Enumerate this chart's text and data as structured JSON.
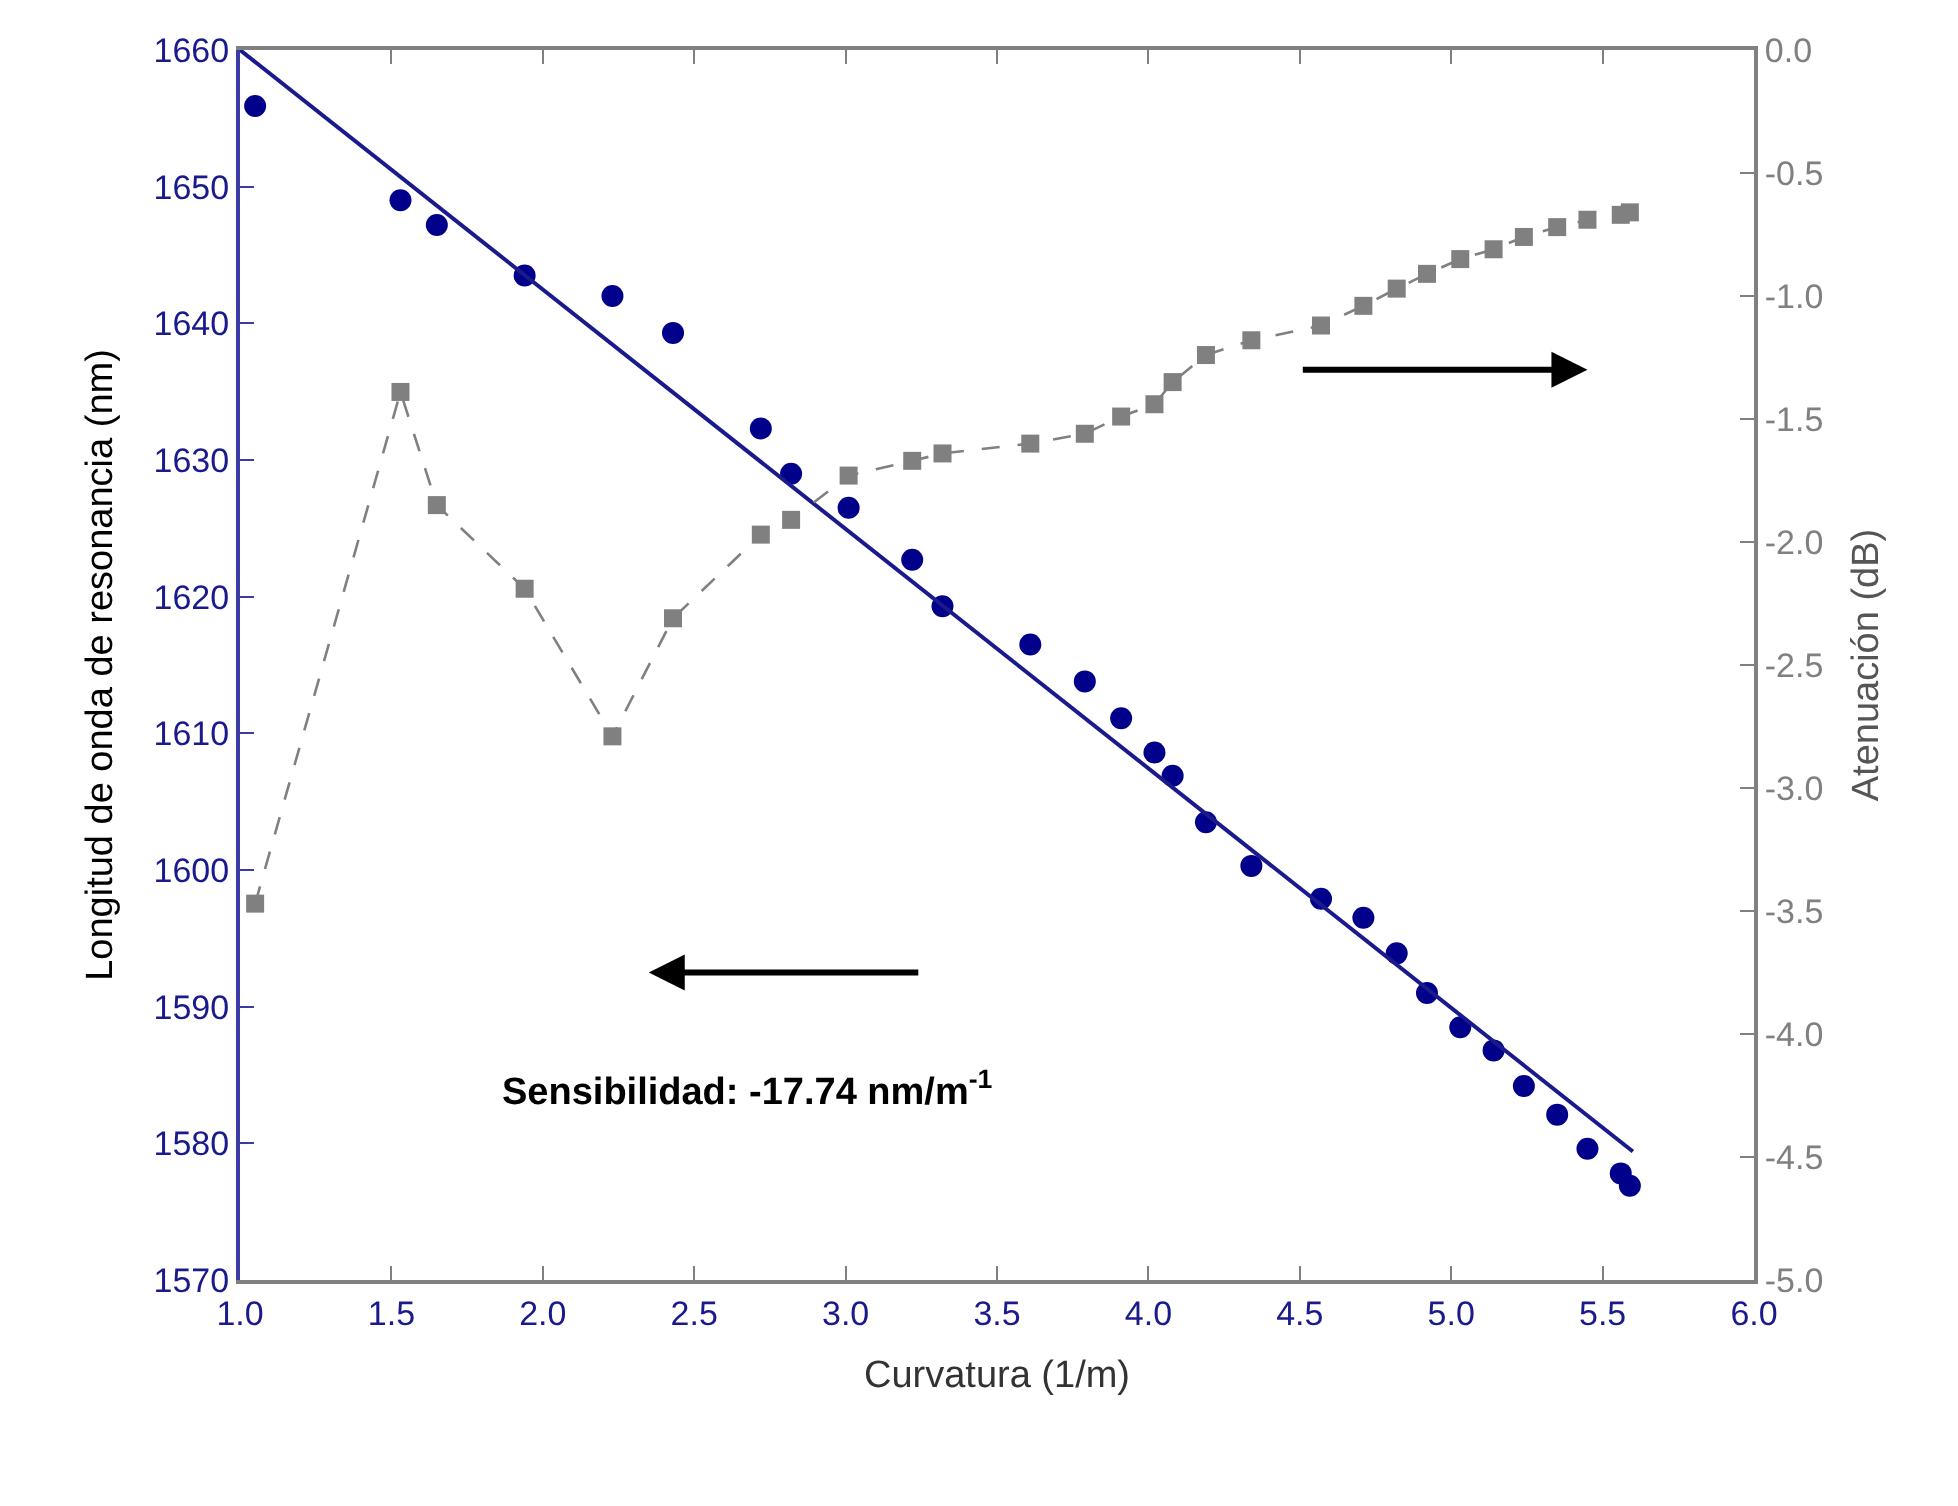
{
  "chart_data": {
    "type": "scatter",
    "xlabel": "Curvatura (1/m)",
    "ylabel": "Longitud de onda de resonancia (nm)",
    "y2label": "Atenuación (dB)",
    "xlim": [
      1.0,
      6.0
    ],
    "xticks": [
      {
        "value": 1.0,
        "label": "1.0"
      },
      {
        "value": 1.5,
        "label": "1.5"
      },
      {
        "value": 2.0,
        "label": "2.0"
      },
      {
        "value": 2.5,
        "label": "2.5"
      },
      {
        "value": 3.0,
        "label": "3.0"
      },
      {
        "value": 3.5,
        "label": "3.5"
      },
      {
        "value": 4.0,
        "label": "4.0"
      },
      {
        "value": 4.5,
        "label": "4.5"
      },
      {
        "value": 5.0,
        "label": "5.0"
      },
      {
        "value": 5.5,
        "label": "5.5"
      },
      {
        "value": 6.0,
        "label": "6.0"
      }
    ],
    "ylim": [
      1570,
      1660
    ],
    "yticks": [
      1570,
      1580,
      1590,
      1600,
      1610,
      1620,
      1630,
      1640,
      1650,
      1660
    ],
    "y2lim": [
      -5.0,
      0.0
    ],
    "y2ticks": [
      {
        "value": -5.0,
        "label": "-5.0"
      },
      {
        "value": -4.5,
        "label": "-4.5"
      },
      {
        "value": -4.0,
        "label": "-4.0"
      },
      {
        "value": -3.5,
        "label": "-3.5"
      },
      {
        "value": -3.0,
        "label": "-3.0"
      },
      {
        "value": -2.5,
        "label": "-2.5"
      },
      {
        "value": -2.0,
        "label": "-2.0"
      },
      {
        "value": -1.5,
        "label": "-1.5"
      },
      {
        "value": -1.0,
        "label": "-1.0"
      },
      {
        "value": -0.5,
        "label": "-0.5"
      },
      {
        "value": 0.0,
        "label": "0.0"
      }
    ],
    "x": [
      1.05,
      1.53,
      1.65,
      1.94,
      2.23,
      2.43,
      2.72,
      2.82,
      3.01,
      3.22,
      3.32,
      3.61,
      3.79,
      3.91,
      4.02,
      4.08,
      4.19,
      4.34,
      4.57,
      4.71,
      4.82,
      4.92,
      5.03,
      5.14,
      5.24,
      5.35,
      5.45,
      5.56,
      5.59
    ],
    "series": [
      {
        "marker": "circle",
        "color": "#00008b",
        "values": [
          1655.9,
          1649.0,
          1647.2,
          1643.5,
          1642.0,
          1639.3,
          1632.3,
          1629.0,
          1626.5,
          1622.7,
          1619.3,
          1616.5,
          1613.8,
          1611.1,
          1608.6,
          1606.9,
          1603.5,
          1600.3,
          1597.9,
          1596.5,
          1593.9,
          1591.0,
          1588.5,
          1586.8,
          1584.2,
          1582.1,
          1579.6,
          1577.8,
          1576.9
        ]
      },
      {
        "type": "line",
        "color": "#1a1a8c",
        "line_style": "solid",
        "marker": "none",
        "x": [
          1.0,
          5.6
        ],
        "values": [
          1660.0,
          1579.4
        ]
      },
      {
        "type": "line",
        "axis": "y2",
        "color": "#808080",
        "line_style": "dashed",
        "marker": "square",
        "values": [
          -3.47,
          -1.39,
          -1.85,
          -2.19,
          -2.79,
          -2.31,
          -1.97,
          -1.91,
          -1.73,
          -1.67,
          -1.64,
          -1.6,
          -1.56,
          -1.49,
          -1.44,
          -1.35,
          -1.24,
          -1.18,
          -1.12,
          -1.04,
          -0.97,
          -0.91,
          -0.85,
          -0.81,
          -0.76,
          -0.72,
          -0.69,
          -0.67,
          -0.66
        ]
      }
    ],
    "annotations": [
      "Sensibilidad: -17.74 nm/m$^{-1}$"
    ]
  }
}
